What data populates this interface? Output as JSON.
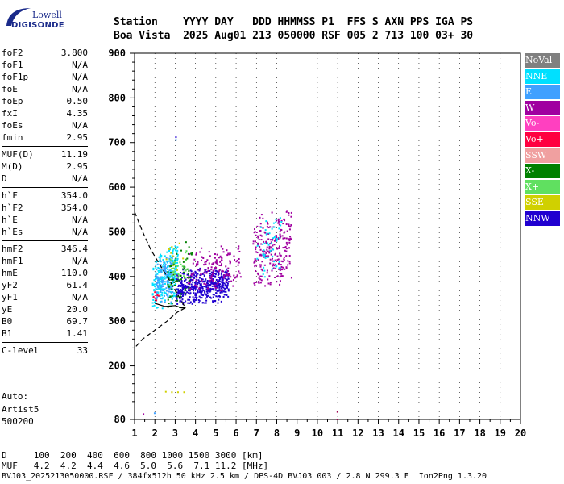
{
  "logo": {
    "line1": "Lowell",
    "line2": "DIGISONDE"
  },
  "header": {
    "line1": "Station    YYYY DAY   DDD HHMMSS P1  FFS S AXN PPS IGA PS",
    "line2": "Boa Vista  2025 Aug01 213 050000 RSF 005 2 713 100 03+ 30"
  },
  "params": [
    {
      "group": [
        {
          "k": "foF2",
          "v": "3.800"
        },
        {
          "k": "foF1",
          "v": "N/A"
        },
        {
          "k": "foF1p",
          "v": "N/A"
        },
        {
          "k": "foE",
          "v": "N/A"
        },
        {
          "k": "foEp",
          "v": "0.50"
        },
        {
          "k": "fxI",
          "v": "4.35"
        },
        {
          "k": "foEs",
          "v": "N/A"
        },
        {
          "k": "fmin",
          "v": "2.95"
        }
      ]
    },
    {
      "group": [
        {
          "k": "MUF(D)",
          "v": "11.19"
        },
        {
          "k": "M(D)",
          "v": "2.95"
        },
        {
          "k": "D",
          "v": "N/A"
        }
      ]
    },
    {
      "group": [
        {
          "k": "h`F",
          "v": "354.0"
        },
        {
          "k": "h`F2",
          "v": "354.0"
        },
        {
          "k": "h`E",
          "v": "N/A"
        },
        {
          "k": "h`Es",
          "v": "N/A"
        }
      ]
    },
    {
      "group": [
        {
          "k": "hmF2",
          "v": "346.4"
        },
        {
          "k": "hmF1",
          "v": "N/A"
        },
        {
          "k": "hmE",
          "v": "110.0"
        },
        {
          "k": "yF2",
          "v": "61.4"
        },
        {
          "k": "yF1",
          "v": "N/A"
        },
        {
          "k": "yE",
          "v": "20.0"
        },
        {
          "k": "B0",
          "v": "69.7"
        },
        {
          "k": "B1",
          "v": "1.41"
        }
      ]
    },
    {
      "group": [
        {
          "k": "C-level",
          "v": "33"
        }
      ]
    }
  ],
  "auto": {
    "line1": "Auto:",
    "line2": "Artist5",
    "line3": "500200"
  },
  "legend": [
    {
      "label": "NoVal",
      "color": "#808080"
    },
    {
      "label": "NNE",
      "color": "#00e0ff"
    },
    {
      "label": "E",
      "color": "#40a0ff"
    },
    {
      "label": "W",
      "color": "#a000a0"
    },
    {
      "label": "Vo-",
      "color": "#ff40c0"
    },
    {
      "label": "Vo+",
      "color": "#ff0040"
    },
    {
      "label": "SSW",
      "color": "#f0a0a0"
    },
    {
      "label": "X-",
      "color": "#008000"
    },
    {
      "label": "X+",
      "color": "#60e060"
    },
    {
      "label": "SSE",
      "color": "#d0d000"
    },
    {
      "label": "NNW",
      "color": "#2000d0"
    }
  ],
  "bottom": {
    "line1": "D     100  200  400  600  800 1000 1500 3000 [km]",
    "line2": "MUF   4.2  4.2  4.4  4.6  5.0  5.6  7.1 11.2 [MHz]",
    "line3": "BVJ03_2025213050000.RSF / 384fx512h 50 kHz 2.5 km / DPS-4D BVJ03 003 / 2.8 N 299.3 E  Ion2Png 1.3.20"
  },
  "chart_data": {
    "type": "scatter",
    "title": "",
    "xlabel": "",
    "ylabel": "",
    "xlim": [
      1,
      20
    ],
    "ylim": [
      80,
      900
    ],
    "xticks": [
      1,
      2,
      3,
      4,
      5,
      6,
      7,
      8,
      9,
      10,
      11,
      12,
      13,
      14,
      15,
      16,
      17,
      18,
      19,
      20
    ],
    "yticks": [
      80,
      200,
      300,
      400,
      500,
      600,
      700,
      800,
      900
    ],
    "grid": "dotted-vertical-at-integer-frequencies",
    "legend_position": "right",
    "clusters": [
      {
        "color": "#00e0ff",
        "xmin": 1.85,
        "xmax": 3.1,
        "ymin": 330,
        "ymax": 470,
        "n": 260
      },
      {
        "color": "#40a0ff",
        "xmin": 2.0,
        "xmax": 2.9,
        "ymin": 340,
        "ymax": 450,
        "n": 120
      },
      {
        "color": "#2000d0",
        "xmin": 3.0,
        "xmax": 5.6,
        "ymin": 340,
        "ymax": 420,
        "n": 520
      },
      {
        "color": "#a000a0",
        "xmin": 3.6,
        "xmax": 6.2,
        "ymin": 370,
        "ymax": 470,
        "n": 160
      },
      {
        "color": "#a000a0",
        "xmin": 6.8,
        "xmax": 8.7,
        "ymin": 380,
        "ymax": 550,
        "n": 260
      },
      {
        "color": "#00e0ff",
        "xmin": 7.0,
        "xmax": 8.2,
        "ymin": 400,
        "ymax": 540,
        "n": 50
      },
      {
        "color": "#008000",
        "xmin": 2.6,
        "xmax": 3.8,
        "ymin": 330,
        "ymax": 480,
        "n": 70
      },
      {
        "color": "#ff0040",
        "xmin": 1.8,
        "xmax": 2.2,
        "ymin": 340,
        "ymax": 370,
        "n": 8
      },
      {
        "color": "#60e060",
        "xmin": 2.7,
        "xmax": 3.6,
        "ymin": 380,
        "ymax": 470,
        "n": 30
      },
      {
        "color": "#d0d000",
        "xmin": 2.5,
        "xmax": 3.4,
        "ymin": 400,
        "ymax": 480,
        "n": 12
      }
    ],
    "isolated_points": [
      {
        "x": 3.0,
        "y": 712,
        "color": "#2000d0"
      },
      {
        "x": 3.0,
        "y": 706,
        "color": "#40a0ff"
      },
      {
        "x": 1.4,
        "y": 92,
        "color": "#a000a0"
      },
      {
        "x": 1.95,
        "y": 94,
        "color": "#40a0ff"
      },
      {
        "x": 2.5,
        "y": 142,
        "color": "#d0d000"
      },
      {
        "x": 2.8,
        "y": 141,
        "color": "#d0d000"
      },
      {
        "x": 3.1,
        "y": 141,
        "color": "#d0d000"
      },
      {
        "x": 3.4,
        "y": 141,
        "color": "#d0d000"
      },
      {
        "x": 10.95,
        "y": 97,
        "color": "#a00050"
      },
      {
        "x": 10.95,
        "y": 80,
        "color": "#a00050"
      }
    ],
    "series": [
      {
        "type": "dashed-line",
        "color": "#000000",
        "points": [
          [
            1.0,
            545
          ],
          [
            1.4,
            500
          ],
          [
            1.8,
            460
          ],
          [
            2.2,
            430
          ],
          [
            2.6,
            400
          ],
          [
            3.0,
            370
          ],
          [
            3.5,
            330
          ],
          [
            3.1,
            320
          ],
          [
            2.6,
            300
          ],
          [
            2.0,
            280
          ],
          [
            1.4,
            260
          ],
          [
            1.0,
            240
          ]
        ]
      },
      {
        "type": "solid-line",
        "color": "#000000",
        "points": [
          [
            2.0,
            340
          ],
          [
            2.5,
            333
          ],
          [
            3.0,
            335
          ],
          [
            3.3,
            330
          ],
          [
            3.5,
            330
          ]
        ]
      }
    ]
  }
}
